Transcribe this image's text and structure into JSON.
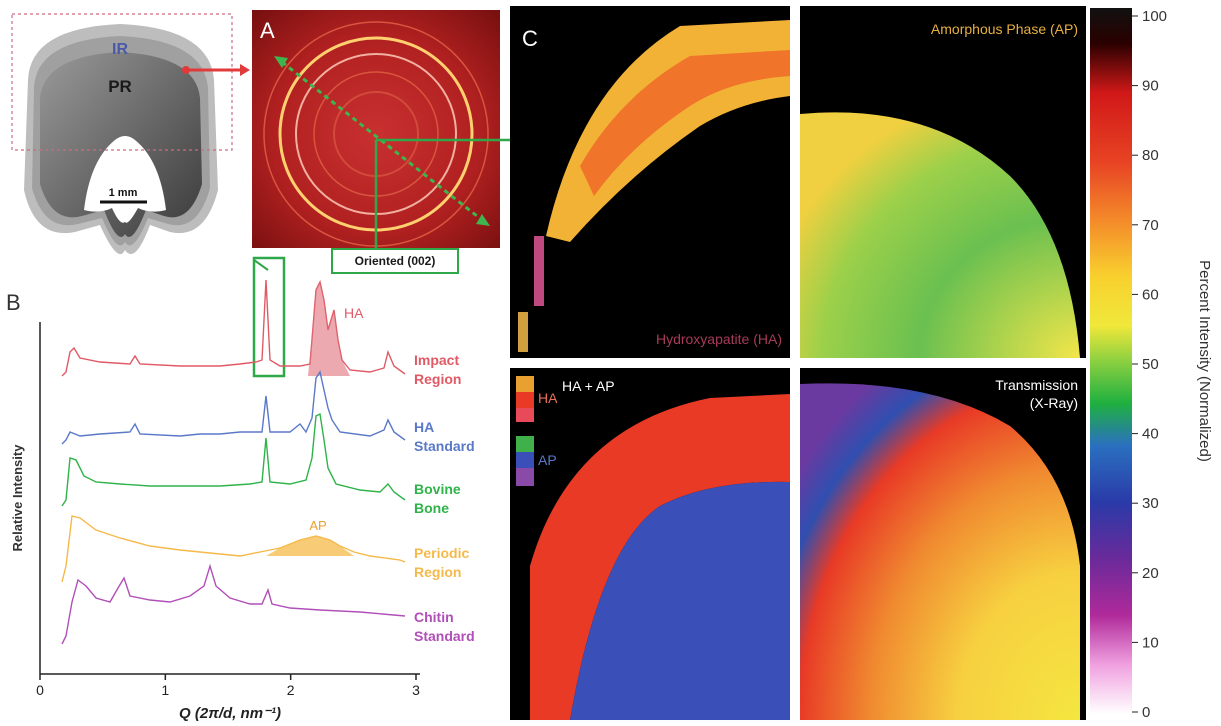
{
  "panel_labels": {
    "a": "A",
    "b": "B",
    "c": "C"
  },
  "schematic": {
    "ir_label": "IR",
    "pr_label": "PR",
    "scale_bar": "1 mm"
  },
  "callout": {
    "oriented": "Oriented (002)"
  },
  "spectra": {
    "ylabel": "Relative Intensity",
    "xlabel": "Q (2π/d, nm⁻¹)",
    "xticks": [
      "0",
      "1",
      "2",
      "3"
    ],
    "peak_labels": {
      "ha": "HA",
      "ap": "AP"
    },
    "samples": [
      {
        "line1": "Impact",
        "line2": "Region",
        "color": "#e05a66"
      },
      {
        "line1": "HA",
        "line2": "Standard",
        "color": "#5a78c8"
      },
      {
        "line1": "Bovine",
        "line2": "Bone",
        "color": "#2fb34a"
      },
      {
        "line1": "Periodic",
        "line2": "Region",
        "color": "#f5b94a"
      },
      {
        "line1": "Chitin",
        "line2": "Standard",
        "color": "#b14fb8"
      }
    ]
  },
  "maps": {
    "ha": "Hydroxyapatite (HA)",
    "ap": "Amorphous Phase (AP)",
    "haap": "HA + AP",
    "haap_legend_ha": "HA",
    "haap_legend_ap": "AP",
    "trans_line1": "Transmission",
    "trans_line2": "(X-Ray)"
  },
  "colorbar": {
    "label": "Percent  Intensity (Normalized)",
    "ticks": [
      "100",
      "90",
      "80",
      "70",
      "60",
      "50",
      "40",
      "30",
      "20",
      "10",
      "0"
    ]
  },
  "colors": {
    "ha_accent": "#c84a5a",
    "ap_accent": "#e8b040",
    "green_callout": "#2fa84a",
    "red_callout": "#e03a3a"
  }
}
